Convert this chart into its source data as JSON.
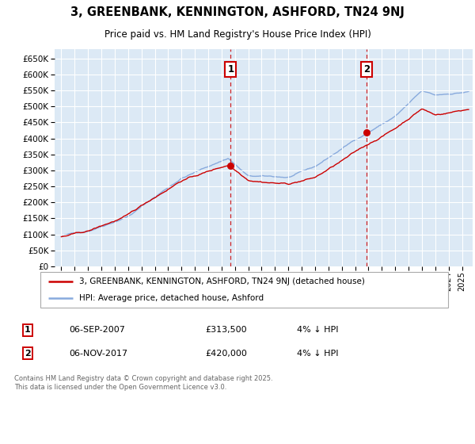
{
  "title": "3, GREENBANK, KENNINGTON, ASHFORD, TN24 9NJ",
  "subtitle": "Price paid vs. HM Land Registry's House Price Index (HPI)",
  "legend_label_red": "3, GREENBANK, KENNINGTON, ASHFORD, TN24 9NJ (detached house)",
  "legend_label_blue": "HPI: Average price, detached house, Ashford",
  "annotation1_label": "1",
  "annotation1_date": "06-SEP-2007",
  "annotation1_price": "£313,500",
  "annotation1_note": "4% ↓ HPI",
  "annotation2_label": "2",
  "annotation2_date": "06-NOV-2017",
  "annotation2_price": "£420,000",
  "annotation2_note": "4% ↓ HPI",
  "footer": "Contains HM Land Registry data © Crown copyright and database right 2025.\nThis data is licensed under the Open Government Licence v3.0.",
  "ylim": [
    0,
    680000
  ],
  "yticks": [
    0,
    50000,
    100000,
    150000,
    200000,
    250000,
    300000,
    350000,
    400000,
    450000,
    500000,
    550000,
    600000,
    650000
  ],
  "xlim_start": 1994.5,
  "xlim_end": 2025.8,
  "background_color": "#dce9f5",
  "red_line_color": "#cc0000",
  "blue_line_color": "#88aadd",
  "vline_color": "#cc0000",
  "marker1_x": 2007.68,
  "marker1_y": 313500,
  "marker2_x": 2017.85,
  "marker2_y": 420000
}
